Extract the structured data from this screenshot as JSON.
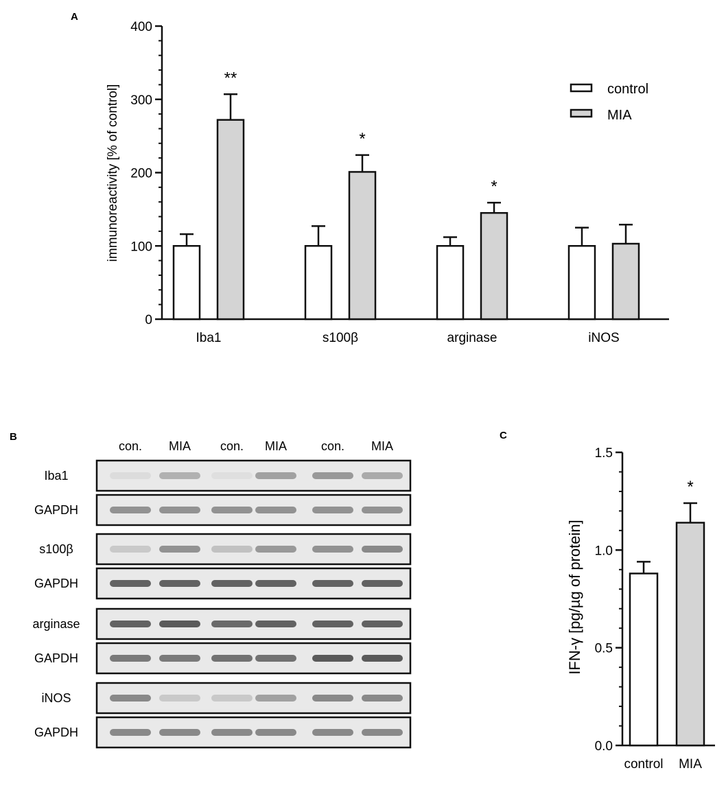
{
  "panels": {
    "A": "A",
    "B": "B",
    "C": "C"
  },
  "colors": {
    "axis": "#111111",
    "control_fill": "#ffffff",
    "mia_fill": "#d4d4d4",
    "blot_bg": "#e9e9e9",
    "band": "#4a4a4a"
  },
  "chart_data": [
    {
      "panel": "A",
      "type": "bar",
      "ylabel": "immunoreactivity [% of control]",
      "xlabel": "",
      "ylim": [
        0,
        400
      ],
      "yticks": [
        0,
        100,
        200,
        300,
        400
      ],
      "ytick_labels": [
        "0",
        "100",
        "200",
        "300",
        "400"
      ],
      "categories": [
        "Iba1",
        "s100β",
        "arginase",
        "iNOS"
      ],
      "series": [
        {
          "name": "control",
          "values": [
            100,
            100,
            100,
            100
          ],
          "errors": [
            16,
            27,
            12,
            25
          ]
        },
        {
          "name": "MIA",
          "values": [
            272,
            201,
            145,
            103
          ],
          "errors": [
            35,
            23,
            14,
            26
          ]
        }
      ],
      "significance": [
        "**",
        "*",
        "*",
        ""
      ],
      "legend": {
        "position": "top-right",
        "entries": [
          "control",
          "MIA"
        ]
      },
      "grid": false
    },
    {
      "panel": "C",
      "type": "bar",
      "ylabel": "IFN-γ [pg/µg of protein]",
      "xlabel": "",
      "ylim": [
        0,
        1.5
      ],
      "yticks": [
        0,
        0.5,
        1.0,
        1.5
      ],
      "ytick_labels": [
        "0.0",
        "0.5",
        "1.0",
        "1.5"
      ],
      "categories": [
        "control",
        "MIA"
      ],
      "values": [
        0.88,
        1.14
      ],
      "errors": [
        0.06,
        0.1
      ],
      "significance": [
        "",
        "*"
      ],
      "grid": false
    }
  ],
  "western_blot": {
    "lane_labels": [
      "con.",
      "MIA",
      "con.",
      "MIA",
      "con.",
      "MIA"
    ],
    "rows": [
      {
        "label": "Iba1",
        "intensity": [
          0.08,
          0.35,
          0.06,
          0.45,
          0.5,
          0.4
        ]
      },
      {
        "label": "GAPDH",
        "intensity": [
          0.55,
          0.55,
          0.55,
          0.55,
          0.55,
          0.55
        ]
      },
      {
        "label": "s100β",
        "intensity": [
          0.2,
          0.55,
          0.25,
          0.5,
          0.55,
          0.6
        ]
      },
      {
        "label": "GAPDH",
        "intensity": [
          0.85,
          0.85,
          0.85,
          0.85,
          0.85,
          0.85
        ]
      },
      {
        "label": "arginase",
        "intensity": [
          0.85,
          0.9,
          0.8,
          0.85,
          0.85,
          0.85
        ]
      },
      {
        "label": "GAPDH",
        "intensity": [
          0.7,
          0.7,
          0.75,
          0.75,
          0.9,
          0.9
        ]
      },
      {
        "label": "iNOS",
        "intensity": [
          0.6,
          0.2,
          0.2,
          0.45,
          0.6,
          0.6
        ]
      },
      {
        "label": "GAPDH",
        "intensity": [
          0.6,
          0.6,
          0.6,
          0.6,
          0.6,
          0.6
        ]
      }
    ]
  }
}
